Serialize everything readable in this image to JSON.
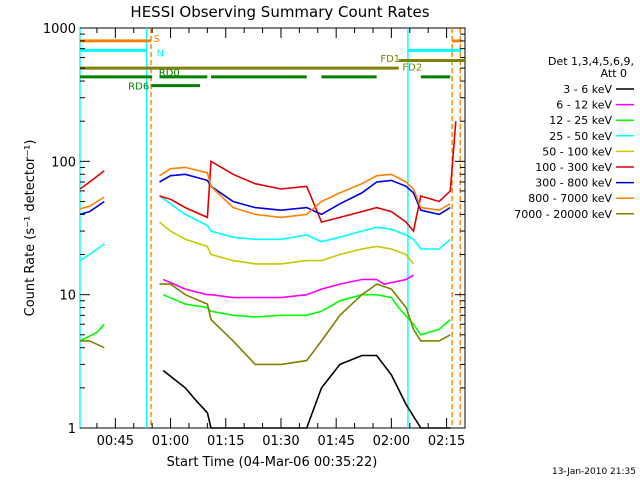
{
  "chart_data": {
    "type": "line",
    "title": "HESSI Observing Summary Count Rates",
    "xlabel": "Start Time (04-Mar-06 00:35:22)",
    "ylabel": "Count Rate (s⁻¹ detector⁻¹)",
    "x_ticks": [
      "00:45",
      "01:00",
      "01:15",
      "01:30",
      "01:45",
      "02:00",
      "02:15"
    ],
    "y_ticks": [
      "1",
      "10",
      "100",
      "1000"
    ],
    "xlim_minutes_after_0030": [
      5.4,
      110
    ],
    "ylim": [
      1,
      1000
    ],
    "y_scale": "log",
    "legend_header": [
      "Det 1,3,4,5,6,9,",
      "Att 0"
    ],
    "legend_placement": "right",
    "timestamp": "13-Jan-2010 21:35",
    "flag_labels": [
      "S",
      "N",
      "FD1",
      "FD2",
      "RD0",
      "RD6"
    ],
    "colors": {
      "S": "#ff8000",
      "N": "#00ffff",
      "FD": "#808000",
      "RD": "#008000",
      "night_line": "#00ffff",
      "saa_line": "#ff8000"
    },
    "flag_bars": [
      {
        "label": "S",
        "y": 800,
        "segments": [
          [
            5.4,
            24.7
          ],
          [
            106.5,
            109
          ]
        ]
      },
      {
        "label": "N",
        "y": 680,
        "segments": [
          [
            5.4,
            23.5
          ],
          [
            94.5,
            109
          ]
        ]
      },
      {
        "label": "FD2",
        "y": 570,
        "segments": [
          [
            92,
            110
          ]
        ]
      },
      {
        "label": "FD1",
        "y": 500,
        "segments": [
          [
            5.4,
            92
          ]
        ]
      },
      {
        "label": "RD0",
        "y": 430,
        "segments": [
          [
            5.4,
            25
          ],
          [
            27,
            40
          ],
          [
            41,
            67
          ],
          [
            71,
            86
          ],
          [
            98,
            106
          ]
        ]
      },
      {
        "label": "RD6",
        "y": 370,
        "segments": [
          [
            24.8,
            38
          ]
        ]
      }
    ],
    "vertical_lines": [
      {
        "x": 5.4,
        "style": "solid",
        "color": "night_line"
      },
      {
        "x": 23.5,
        "style": "solid",
        "color": "night_line"
      },
      {
        "x": 24.7,
        "style": "dashed",
        "color": "saa_line"
      },
      {
        "x": 94.5,
        "style": "solid",
        "color": "night_line"
      },
      {
        "x": 106.5,
        "style": "dashed",
        "color": "saa_line"
      },
      {
        "x": 108.7,
        "style": "dashed",
        "color": "saa_line"
      }
    ],
    "series": [
      {
        "name": "3 - 6 keV",
        "color": "#000000",
        "x": [
          5.4,
          10,
          12,
          24.7,
          28,
          34,
          37,
          40,
          41,
          47,
          53,
          60,
          67,
          71,
          76,
          82,
          86,
          90,
          94,
          98,
          103,
          106
        ],
        "values": [
          null,
          null,
          null,
          null,
          2.7,
          2.0,
          1.6,
          1.3,
          1.0,
          1.0,
          1.0,
          1.0,
          1.0,
          2.0,
          3.0,
          3.5,
          3.5,
          2.5,
          1.5,
          1.0,
          1.0,
          1.0
        ]
      },
      {
        "name": "6 - 12 keV",
        "color": "#ff00ff",
        "x": [
          24.7,
          28,
          34,
          40,
          41,
          47,
          53,
          60,
          67,
          71,
          76,
          82,
          86,
          88,
          94,
          96
        ],
        "values": [
          null,
          13,
          11,
          10,
          10,
          9.5,
          9.5,
          9.5,
          10,
          11,
          12,
          13,
          13,
          12,
          13,
          14
        ]
      },
      {
        "name": "12 - 25 keV",
        "color": "#00ff00",
        "x": [
          5.4,
          10,
          12,
          24.7,
          28,
          34,
          40,
          41,
          47,
          53,
          60,
          67,
          71,
          76,
          82,
          86,
          90,
          92,
          96,
          98,
          103,
          106
        ],
        "values": [
          4.5,
          5.2,
          6.0,
          null,
          10,
          8.5,
          8.0,
          7.5,
          7.0,
          6.8,
          7.0,
          7.0,
          7.5,
          9.0,
          10,
          10,
          9.5,
          8.0,
          6.0,
          5.0,
          5.5,
          6.5
        ]
      },
      {
        "name": "25 - 50 keV",
        "color": "#00ffff",
        "x": [
          5.4,
          8,
          12,
          24.7,
          27,
          30,
          34,
          40,
          41,
          47,
          53,
          60,
          67,
          71,
          76,
          82,
          86,
          90,
          94,
          96,
          98,
          103,
          106
        ],
        "values": [
          18,
          20,
          24,
          null,
          55,
          48,
          40,
          33,
          30,
          27,
          26,
          26,
          28,
          25,
          27,
          30,
          32,
          31,
          28,
          26,
          22,
          22,
          26
        ]
      },
      {
        "name": "50 - 100 keV",
        "color": "#c8c800",
        "x": [
          24.7,
          27,
          30,
          34,
          40,
          41,
          47,
          53,
          60,
          67,
          71,
          76,
          82,
          86,
          90,
          94,
          96
        ],
        "values": [
          null,
          35,
          30,
          26,
          23,
          20,
          18,
          17,
          17,
          18,
          18,
          20,
          22,
          23,
          22,
          20,
          17
        ]
      },
      {
        "name": "100 - 300 keV",
        "color": "#e00000",
        "x": [
          5.4,
          8,
          12,
          24.7,
          27,
          30,
          34,
          40,
          41,
          47,
          53,
          60,
          67,
          71,
          76,
          82,
          86,
          90,
          94,
          96,
          98,
          103,
          106,
          107.5
        ],
        "values": [
          62,
          70,
          85,
          null,
          55,
          52,
          45,
          38,
          100,
          80,
          68,
          62,
          65,
          35,
          38,
          42,
          45,
          42,
          35,
          30,
          55,
          50,
          60,
          200
        ]
      },
      {
        "name": "300 - 800 keV",
        "color": "#0000e0",
        "x": [
          5.4,
          8,
          12,
          24.7,
          27,
          30,
          34,
          40,
          41,
          47,
          53,
          60,
          67,
          71,
          76,
          82,
          86,
          90,
          94,
          96,
          98,
          103,
          106
        ],
        "values": [
          40,
          42,
          50,
          null,
          70,
          78,
          80,
          72,
          65,
          50,
          45,
          43,
          45,
          40,
          48,
          58,
          70,
          72,
          65,
          58,
          43,
          40,
          45
        ]
      },
      {
        "name": "800 - 7000 keV",
        "color": "#ff8000",
        "x": [
          5.4,
          8,
          12,
          24.7,
          27,
          30,
          34,
          40,
          41,
          47,
          53,
          60,
          67,
          71,
          76,
          82,
          86,
          90,
          94,
          96,
          98,
          103,
          106
        ],
        "values": [
          44,
          46,
          54,
          null,
          78,
          88,
          90,
          82,
          65,
          45,
          40,
          38,
          40,
          50,
          58,
          68,
          78,
          80,
          70,
          62,
          45,
          43,
          48
        ]
      },
      {
        "name": "7000 - 20000 keV",
        "color": "#808000",
        "x": [
          5.4,
          8,
          12,
          24.7,
          27,
          30,
          34,
          40,
          41,
          47,
          53,
          60,
          67,
          71,
          76,
          82,
          86,
          90,
          94,
          96,
          98,
          103,
          106
        ],
        "values": [
          4.5,
          4.5,
          4.0,
          null,
          12,
          12,
          10,
          8.5,
          6.5,
          4.5,
          3.0,
          3.0,
          3.2,
          4.5,
          7.0,
          10,
          12,
          11,
          8.0,
          5.5,
          4.5,
          4.5,
          5.0
        ]
      }
    ]
  }
}
